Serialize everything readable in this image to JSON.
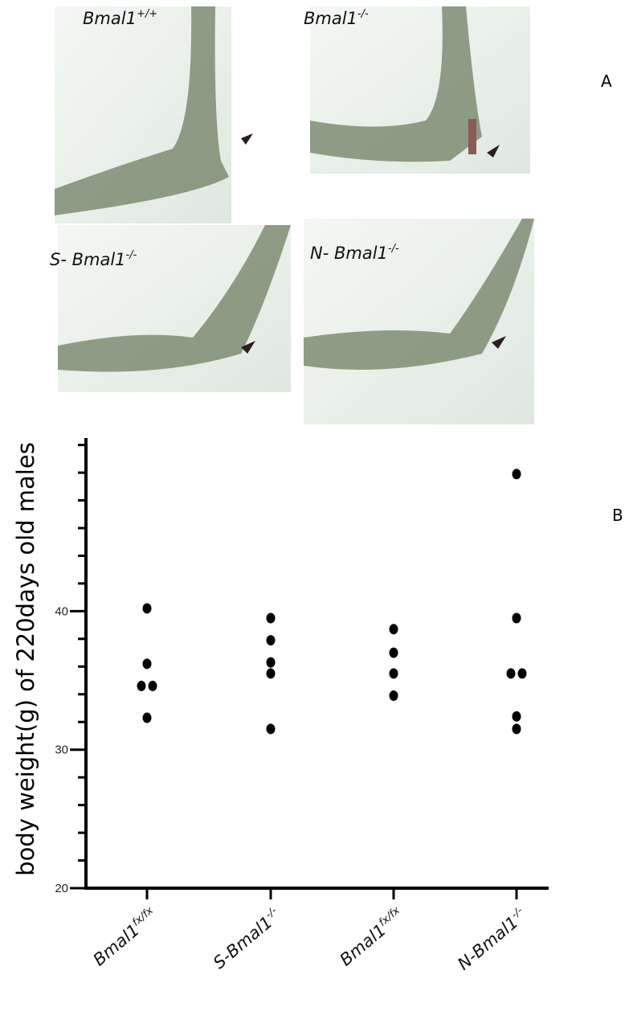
{
  "panel_a": {
    "label": "A",
    "images": [
      {
        "text": "Bmal1",
        "sup": "+/+"
      },
      {
        "text": "Bmal1",
        "sup": "-/-"
      },
      {
        "text": "S- Bmal1",
        "sup": "-/-"
      },
      {
        "text": "N- Bmal1",
        "sup": "-/-"
      }
    ]
  },
  "chart_data": {
    "type": "strip",
    "panel_label": "B",
    "y_label": "body weight(g) of 220days old males",
    "categories": [
      {
        "text": "Bmal1",
        "sup": "fx/fx"
      },
      {
        "text": "S-Bmal1",
        "sup": "-/-"
      },
      {
        "text": "Bmal1",
        "sup": "fx/fx"
      },
      {
        "text": "N-Bmal1",
        "sup": "-/-"
      }
    ],
    "values": [
      [
        40.2,
        36.2,
        34.6,
        34.6,
        32.3
      ],
      [
        39.5,
        37.9,
        36.3,
        35.5,
        31.5
      ],
      [
        38.7,
        37.0,
        35.5,
        33.9
      ],
      [
        49.9,
        39.5,
        35.5,
        35.5,
        32.4,
        31.5
      ]
    ],
    "color": "#000000",
    "ylim": [
      20,
      52.5
    ],
    "yticks": [
      20,
      30,
      40
    ],
    "yminorticks": [
      22,
      24,
      26,
      28,
      32,
      34,
      36,
      38,
      42,
      44,
      46,
      48,
      50,
      52
    ]
  }
}
